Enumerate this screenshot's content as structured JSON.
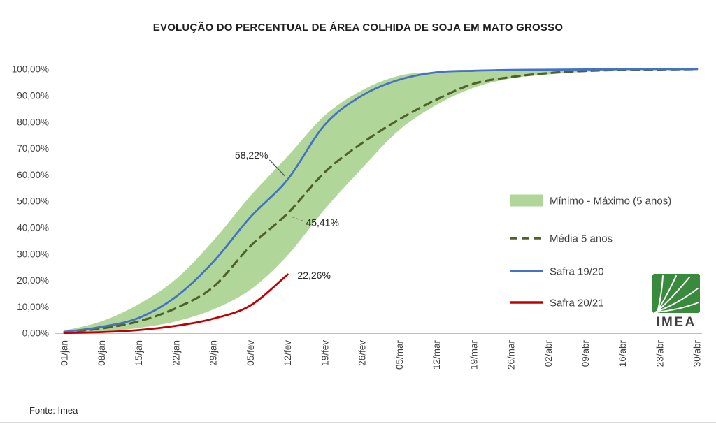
{
  "chart": {
    "title": "EVOLUÇÃO DO PERCENTUAL DE ÁREA COLHIDA DE SOJA EM MATO GROSSO"
  },
  "footer": {
    "source": "Fonte: Imea"
  },
  "logo": {
    "text": "IMEA",
    "color": "#3a8a3d"
  },
  "chart_data": {
    "type": "line",
    "title": "EVOLUÇÃO DO PERCENTUAL DE ÁREA COLHIDA DE SOJA EM MATO GROSSO",
    "xlabel": "",
    "ylabel": "",
    "ylim": [
      0,
      100
    ],
    "grid": false,
    "legend_position": "right",
    "categories": [
      "01/jan",
      "08/jan",
      "15/jan",
      "22/jan",
      "29/jan",
      "05/fev",
      "12/fev",
      "19/fev",
      "26/fev",
      "05/mar",
      "12/mar",
      "19/mar",
      "26/mar",
      "02/abr",
      "09/abr",
      "16/abr",
      "23/abr",
      "30/abr"
    ],
    "y_ticks": [
      "0,00%",
      "10,00%",
      "20,00%",
      "30,00%",
      "40,00%",
      "50,00%",
      "60,00%",
      "70,00%",
      "80,00%",
      "90,00%",
      "100,00%"
    ],
    "series": [
      {
        "name": "Mínimo - Máximo (5 anos)",
        "type": "band",
        "color": "#a9d18e",
        "min": [
          0,
          0.5,
          2,
          4.5,
          9,
          16.5,
          29.5,
          47,
          62.5,
          77,
          86.5,
          93,
          96.5,
          98,
          99,
          99.6,
          99.9,
          100
        ],
        "max": [
          1,
          4.5,
          11,
          20.5,
          35,
          52,
          67,
          82.5,
          92,
          97.5,
          99,
          99.5,
          99.8,
          100,
          100,
          100,
          100,
          100
        ]
      },
      {
        "name": "Média 5 anos",
        "type": "dashed-line",
        "color": "#4f6228",
        "dash": "11 8",
        "width": 3.2,
        "values": [
          0.4,
          1.8,
          4.5,
          9.5,
          17.5,
          33,
          45.41,
          61,
          72,
          81,
          88.5,
          94.5,
          97,
          98.5,
          99.3,
          99.7,
          99.9,
          100
        ]
      },
      {
        "name": "Safra 19/20",
        "type": "line",
        "color": "#4472c4",
        "width": 2.8,
        "values": [
          0.5,
          2.4,
          5.8,
          13.8,
          27,
          44,
          58.22,
          79,
          90,
          96,
          98.8,
          99.4,
          99.7,
          99.8,
          99.9,
          100,
          100,
          100
        ]
      },
      {
        "name": "Safra 20/21",
        "type": "line",
        "color": "#c00000",
        "width": 2.8,
        "values": [
          0.1,
          0.4,
          1.2,
          2.8,
          5.5,
          10.5,
          22.26,
          null,
          null,
          null,
          null,
          null,
          null,
          null,
          null,
          null,
          null,
          null
        ]
      }
    ],
    "annotations": [
      {
        "label": "58,22%",
        "series": "Safra 19/20",
        "category": "12/fev",
        "value": 58.22
      },
      {
        "label": "45,41%",
        "series": "Média 5 anos",
        "category": "12/fev",
        "value": 45.41
      },
      {
        "label": "22,26%",
        "series": "Safra 20/21",
        "category": "12/fev",
        "value": 22.26
      }
    ]
  }
}
